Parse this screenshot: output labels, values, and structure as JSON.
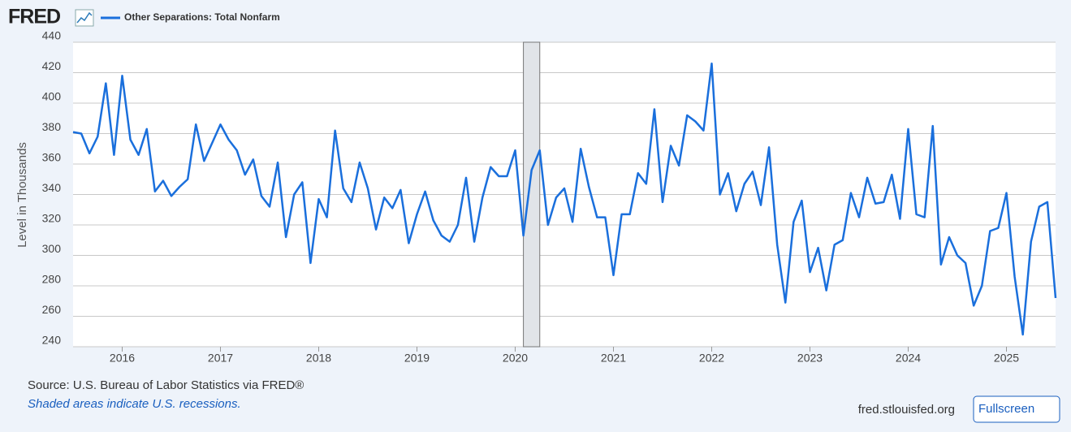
{
  "logo": "FRED",
  "chart_data": {
    "type": "line",
    "x": [
      "2015-07",
      "2015-08",
      "2015-09",
      "2015-10",
      "2015-11",
      "2015-12",
      "2016-01",
      "2016-02",
      "2016-03",
      "2016-04",
      "2016-05",
      "2016-06",
      "2016-07",
      "2016-08",
      "2016-09",
      "2016-10",
      "2016-11",
      "2016-12",
      "2017-01",
      "2017-02",
      "2017-03",
      "2017-04",
      "2017-05",
      "2017-06",
      "2017-07",
      "2017-08",
      "2017-09",
      "2017-10",
      "2017-11",
      "2017-12",
      "2018-01",
      "2018-02",
      "2018-03",
      "2018-04",
      "2018-05",
      "2018-06",
      "2018-07",
      "2018-08",
      "2018-09",
      "2018-10",
      "2018-11",
      "2018-12",
      "2019-01",
      "2019-02",
      "2019-03",
      "2019-04",
      "2019-05",
      "2019-06",
      "2019-07",
      "2019-08",
      "2019-09",
      "2019-10",
      "2019-11",
      "2019-12",
      "2020-01",
      "2020-02",
      "2020-03",
      "2020-04",
      "2020-05",
      "2020-06",
      "2020-07",
      "2020-08",
      "2020-09",
      "2020-10",
      "2020-11",
      "2020-12",
      "2021-01",
      "2021-02",
      "2021-03",
      "2021-04",
      "2021-05",
      "2021-06",
      "2021-07",
      "2021-08",
      "2021-09",
      "2021-10",
      "2021-11",
      "2021-12",
      "2022-01",
      "2022-02",
      "2022-03",
      "2022-04",
      "2022-05",
      "2022-06",
      "2022-07",
      "2022-08",
      "2022-09",
      "2022-10",
      "2022-11",
      "2022-12",
      "2023-01",
      "2023-02",
      "2023-03",
      "2023-04",
      "2023-05",
      "2023-06",
      "2023-07",
      "2023-08",
      "2023-09",
      "2023-10",
      "2023-11",
      "2023-12",
      "2024-01",
      "2024-02",
      "2024-03",
      "2024-04",
      "2024-05",
      "2024-06",
      "2024-07",
      "2024-08",
      "2024-09",
      "2024-10",
      "2024-11",
      "2024-12",
      "2025-01",
      "2025-02",
      "2025-03",
      "2025-04",
      "2025-05",
      "2025-06",
      "2025-07"
    ],
    "series": [
      {
        "name": "Other Separations: Total Nonfarm",
        "color": "#1a6fdc",
        "values": [
          381,
          380,
          367,
          378,
          413,
          366,
          418,
          376,
          366,
          383,
          342,
          349,
          339,
          345,
          350,
          386,
          362,
          374,
          386,
          376,
          369,
          353,
          363,
          339,
          332,
          361,
          312,
          340,
          348,
          295,
          337,
          325,
          382,
          344,
          335,
          361,
          344,
          317,
          338,
          331,
          343,
          308,
          327,
          342,
          323,
          313,
          309,
          320,
          351,
          309,
          338,
          358,
          352,
          352,
          369,
          313,
          356,
          369,
          320,
          338,
          344,
          322,
          370,
          345,
          325,
          325,
          287,
          327,
          327,
          354,
          347,
          396,
          335,
          372,
          359,
          392,
          388,
          382,
          426,
          340,
          354,
          329,
          347,
          355,
          333,
          371,
          307,
          269,
          322,
          336,
          289,
          305,
          277,
          307,
          310,
          341,
          325,
          351,
          334,
          335,
          353,
          324,
          383,
          327,
          325,
          385,
          294,
          312,
          300,
          295,
          267,
          280,
          316,
          318,
          341,
          286,
          248,
          309,
          332,
          335,
          272
        ]
      }
    ],
    "y_label": "Level in Thousands",
    "xlim": [
      "2015-07",
      "2025-07"
    ],
    "xticks": [
      {
        "value": "2016-01",
        "label": "2016"
      },
      {
        "value": "2017-01",
        "label": "2017"
      },
      {
        "value": "2018-01",
        "label": "2018"
      },
      {
        "value": "2019-01",
        "label": "2019"
      },
      {
        "value": "2020-01",
        "label": "2020"
      },
      {
        "value": "2021-01",
        "label": "2021"
      },
      {
        "value": "2022-01",
        "label": "2022"
      },
      {
        "value": "2023-01",
        "label": "2023"
      },
      {
        "value": "2024-01",
        "label": "2024"
      },
      {
        "value": "2025-01",
        "label": "2025"
      }
    ],
    "ylim": [
      240,
      440
    ],
    "yticks": [
      240,
      260,
      280,
      300,
      320,
      340,
      360,
      380,
      400,
      420,
      440
    ],
    "grid": true,
    "recessions": [
      {
        "start": "2020-02",
        "end": "2020-04"
      }
    ]
  },
  "source": "Source: U.S. Bureau of Labor Statistics via FRED®",
  "note": "Shaded areas indicate U.S. recessions.",
  "site": "fred.stlouisfed.org",
  "button": "Fullscreen"
}
